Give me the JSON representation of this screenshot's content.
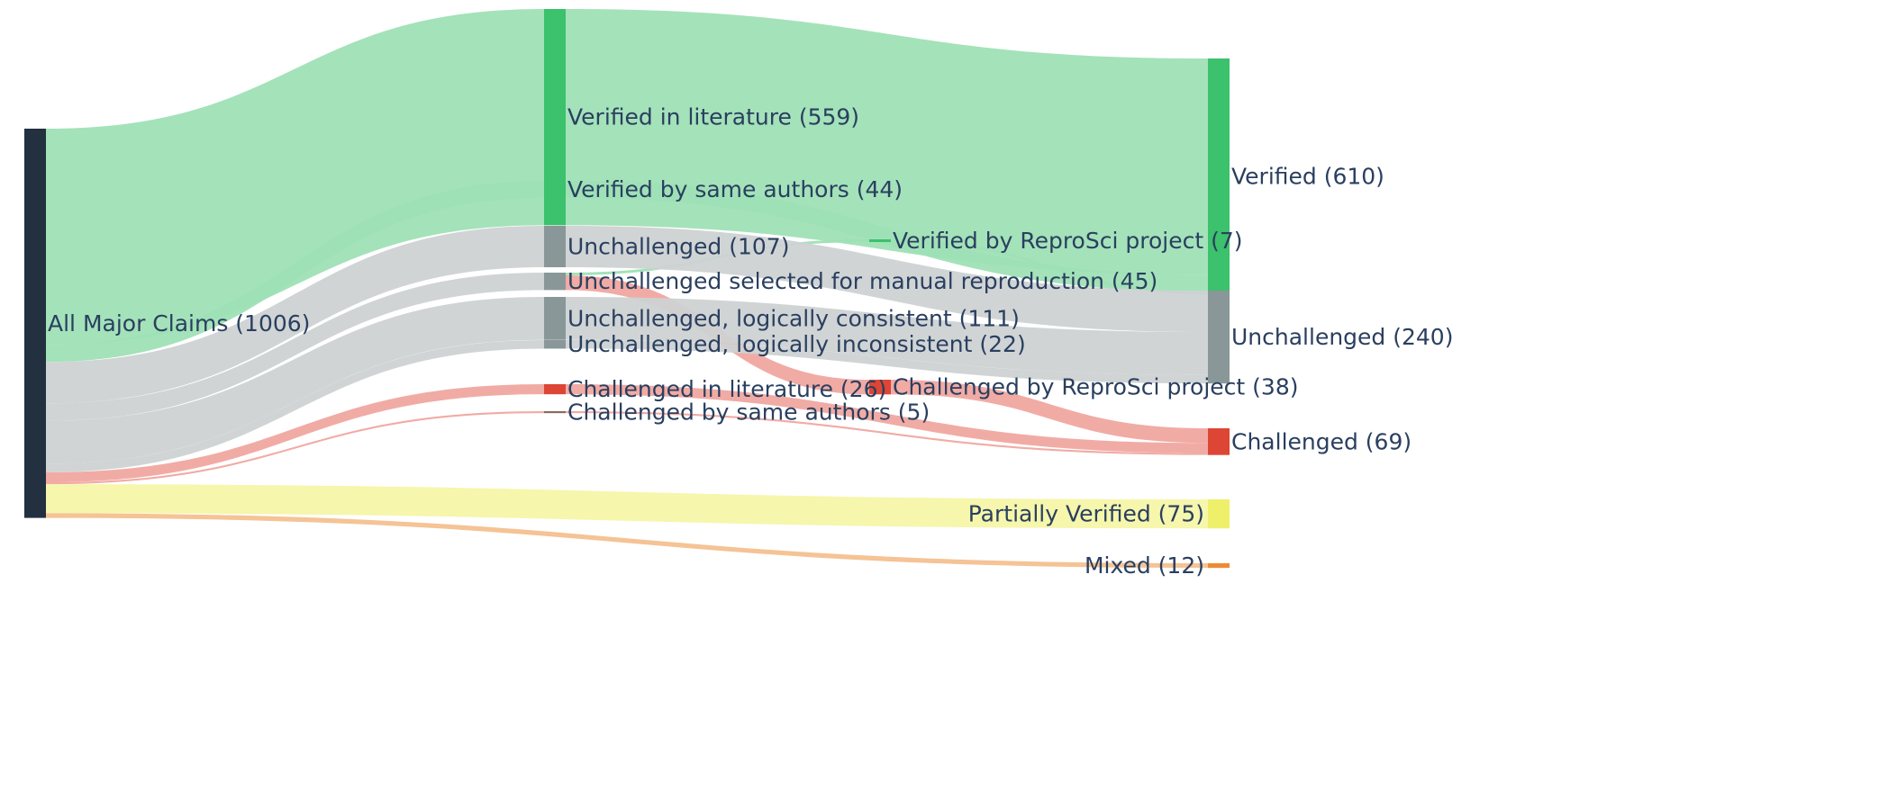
{
  "chart_data": {
    "type": "sankey",
    "title": "",
    "nodes": [
      {
        "id": "all",
        "label": "All Major Claims (1006)",
        "value": 1006,
        "column": 0,
        "color": "#223040"
      },
      {
        "id": "vlit",
        "label": "Verified in literature (559)",
        "value": 559,
        "column": 1,
        "color": "#3cc16c"
      },
      {
        "id": "vsame",
        "label": "Verified by same authors (44)",
        "value": 44,
        "column": 1,
        "color": "#3cc16c"
      },
      {
        "id": "unch",
        "label": "Unchallenged (107)",
        "value": 107,
        "column": 1,
        "color": "#8a9798"
      },
      {
        "id": "usel",
        "label": "Unchallenged selected for manual reproduction (45)",
        "value": 45,
        "column": 1,
        "color": "#8a9798"
      },
      {
        "id": "ucons",
        "label": "Unchallenged, logically consistent (111)",
        "value": 111,
        "column": 1,
        "color": "#8a9798"
      },
      {
        "id": "uincons",
        "label": "Unchallenged, logically inconsistent (22)",
        "value": 22,
        "column": 1,
        "color": "#8a9798"
      },
      {
        "id": "clit",
        "label": "Challenged in literature (26)",
        "value": 26,
        "column": 1,
        "color": "#dd4535"
      },
      {
        "id": "csame",
        "label": "Challenged by same authors (5)",
        "value": 5,
        "column": 1,
        "color": "#8a6a60"
      },
      {
        "id": "vrepro",
        "label": "Verified by ReproSci project (7)",
        "value": 7,
        "column": 2,
        "color": "#3cc16c"
      },
      {
        "id": "crepro",
        "label": "Challenged by ReproSci project (38)",
        "value": 38,
        "column": 2,
        "color": "#dd4535"
      },
      {
        "id": "verified",
        "label": "Verified (610)",
        "value": 610,
        "column": 3,
        "color": "#3cc16c"
      },
      {
        "id": "unchallenged",
        "label": "Unchallenged (240)",
        "value": 240,
        "column": 3,
        "color": "#8a9798"
      },
      {
        "id": "challenged",
        "label": "Challenged (69)",
        "value": 69,
        "column": 3,
        "color": "#dd4535"
      },
      {
        "id": "partial",
        "label": "Partially Verified (75)",
        "value": 75,
        "column": 3,
        "color": "#eef06a"
      },
      {
        "id": "mixed",
        "label": "Mixed (12)",
        "value": 12,
        "column": 3,
        "color": "#ee8a35"
      }
    ],
    "links": [
      {
        "source": "all",
        "target": "vlit",
        "value": 559,
        "color": "#9fe0b6"
      },
      {
        "source": "all",
        "target": "vsame",
        "value": 44,
        "color": "#9fe0b6"
      },
      {
        "source": "all",
        "target": "unch",
        "value": 107,
        "color": "#cdd2d3"
      },
      {
        "source": "all",
        "target": "usel",
        "value": 45,
        "color": "#cdd2d3"
      },
      {
        "source": "all",
        "target": "ucons",
        "value": 111,
        "color": "#cdd2d3"
      },
      {
        "source": "all",
        "target": "uincons",
        "value": 22,
        "color": "#cdd2d3"
      },
      {
        "source": "all",
        "target": "clit",
        "value": 26,
        "color": "#f0a6a0"
      },
      {
        "source": "all",
        "target": "csame",
        "value": 5,
        "color": "#f0a6a0"
      },
      {
        "source": "all",
        "target": "partial",
        "value": 75,
        "color": "#f5f5a8"
      },
      {
        "source": "all",
        "target": "mixed",
        "value": 12,
        "color": "#f4c08f"
      },
      {
        "source": "vlit",
        "target": "verified",
        "value": 559,
        "color": "#9fe0b6"
      },
      {
        "source": "vsame",
        "target": "verified",
        "value": 44,
        "color": "#9fe0b6"
      },
      {
        "source": "usel",
        "target": "vrepro",
        "value": 7,
        "color": "#9fe0b6"
      },
      {
        "source": "usel",
        "target": "crepro",
        "value": 38,
        "color": "#f0a6a0"
      },
      {
        "source": "vrepro",
        "target": "verified",
        "value": 7,
        "color": "#9fe0b6"
      },
      {
        "source": "unch",
        "target": "unchallenged",
        "value": 107,
        "color": "#cdd2d3"
      },
      {
        "source": "ucons",
        "target": "unchallenged",
        "value": 111,
        "color": "#cdd2d3"
      },
      {
        "source": "uincons",
        "target": "unchallenged",
        "value": 22,
        "color": "#cdd2d3"
      },
      {
        "source": "crepro",
        "target": "challenged",
        "value": 38,
        "color": "#f0a6a0"
      },
      {
        "source": "clit",
        "target": "challenged",
        "value": 26,
        "color": "#f0a6a0"
      },
      {
        "source": "csame",
        "target": "challenged",
        "value": 5,
        "color": "#f0a6a0"
      }
    ]
  }
}
